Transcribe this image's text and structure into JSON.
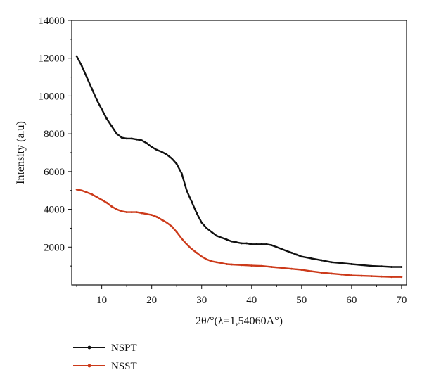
{
  "chart_data": {
    "type": "line",
    "title": "",
    "xlabel": "2θ/°(λ=1,54060A°)",
    "ylabel": "Intensity (a.u)",
    "xlim": [
      4,
      71
    ],
    "ylim": [
      0,
      14000
    ],
    "grid": false,
    "legend_position": "bottom-left",
    "x_ticks": [
      10,
      20,
      30,
      40,
      50,
      60,
      70
    ],
    "y_ticks": [
      2000,
      4000,
      6000,
      8000,
      10000,
      12000,
      14000
    ],
    "series": [
      {
        "name": "NSPT",
        "color": "#111111",
        "x": [
          5,
          6,
          7,
          8,
          9,
          10,
          11,
          12,
          13,
          14,
          15,
          16,
          17,
          18,
          19,
          20,
          21,
          22,
          23,
          24,
          25,
          26,
          27,
          28,
          29,
          30,
          31,
          32,
          33,
          34,
          35,
          36,
          37,
          38,
          39,
          40,
          41,
          42,
          43,
          44,
          45,
          46,
          47,
          48,
          49,
          50,
          52,
          54,
          56,
          58,
          60,
          62,
          64,
          66,
          68,
          70
        ],
        "values": [
          12100,
          11600,
          11000,
          10400,
          9800,
          9300,
          8800,
          8400,
          8000,
          7800,
          7750,
          7750,
          7700,
          7650,
          7500,
          7300,
          7150,
          7050,
          6900,
          6700,
          6400,
          5900,
          5000,
          4400,
          3800,
          3300,
          3000,
          2800,
          2600,
          2500,
          2400,
          2300,
          2250,
          2200,
          2200,
          2150,
          2150,
          2150,
          2150,
          2100,
          2000,
          1900,
          1800,
          1700,
          1600,
          1500,
          1400,
          1300,
          1200,
          1150,
          1100,
          1050,
          1000,
          980,
          950,
          950
        ]
      },
      {
        "name": "NSST",
        "color": "#cc3a1a",
        "x": [
          5,
          6,
          7,
          8,
          9,
          10,
          11,
          12,
          13,
          14,
          15,
          16,
          17,
          18,
          19,
          20,
          21,
          22,
          23,
          24,
          25,
          26,
          27,
          28,
          29,
          30,
          31,
          32,
          33,
          34,
          35,
          36,
          38,
          40,
          42,
          44,
          46,
          48,
          50,
          52,
          54,
          56,
          58,
          60,
          62,
          64,
          66,
          68,
          70
        ],
        "values": [
          5050,
          5000,
          4900,
          4800,
          4650,
          4500,
          4350,
          4150,
          4000,
          3900,
          3850,
          3850,
          3850,
          3800,
          3750,
          3700,
          3600,
          3450,
          3300,
          3100,
          2800,
          2450,
          2150,
          1900,
          1700,
          1500,
          1350,
          1250,
          1200,
          1150,
          1100,
          1080,
          1050,
          1020,
          1000,
          950,
          900,
          850,
          800,
          720,
          650,
          600,
          550,
          500,
          480,
          460,
          440,
          420,
          420
        ]
      }
    ]
  }
}
